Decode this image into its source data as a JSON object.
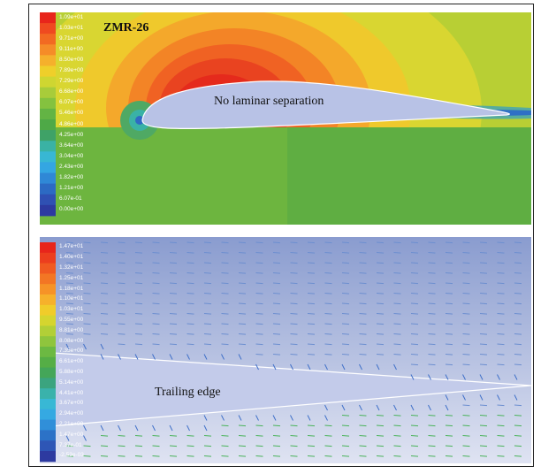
{
  "top_panel": {
    "title": "ZMR-26",
    "annotation": "No laminar separation",
    "legend": [
      "1.09e+01",
      "1.03e+01",
      "9.71e+00",
      "9.11e+00",
      "8.50e+00",
      "7.89e+00",
      "7.29e+00",
      "6.68e+00",
      "6.07e+00",
      "5.46e+00",
      "4.86e+00",
      "4.25e+00",
      "3.64e+00",
      "3.04e+00",
      "2.43e+00",
      "1.82e+00",
      "1.21e+00",
      "6.07e-01",
      "0.00e+00"
    ],
    "legend_colors": [
      "#e8251b",
      "#ef4a20",
      "#f26a22",
      "#f58c28",
      "#f5b02c",
      "#efcf2a",
      "#cfd631",
      "#a8cc3a",
      "#84c23f",
      "#63b444",
      "#4ea947",
      "#3fa267",
      "#3ab2a4",
      "#38b7d3",
      "#34a6e2",
      "#2f88d6",
      "#2c6ac3",
      "#2f50b3",
      "#2d3aa0"
    ]
  },
  "bottom_panel": {
    "annotation": "Trailing edge",
    "legend": [
      "1.47e+01",
      "1.40e+01",
      "1.32e+01",
      "1.25e+01",
      "1.18e+01",
      "1.10e+01",
      "1.03e+01",
      "9.55e+00",
      "8.81e+00",
      "8.08e+00",
      "7.35e+00",
      "6.61e+00",
      "5.88e+00",
      "5.14e+00",
      "4.41e+00",
      "3.67e+00",
      "2.94e+00",
      "2.21e+00",
      "1.47e+00",
      "7.37e-01",
      "-2.53e-03"
    ],
    "legend_colors": [
      "#e8251b",
      "#ec3e1e",
      "#f05a21",
      "#f37624",
      "#f69327",
      "#f6b12b",
      "#f0cc2a",
      "#d5d52f",
      "#b2cf37",
      "#8fc53d",
      "#6cb942",
      "#55ae46",
      "#44a659",
      "#3ba47f",
      "#3ab2ab",
      "#38b8d5",
      "#35a9e2",
      "#308fd9",
      "#2c72c7",
      "#2e56b6",
      "#2d3aa0"
    ]
  }
}
